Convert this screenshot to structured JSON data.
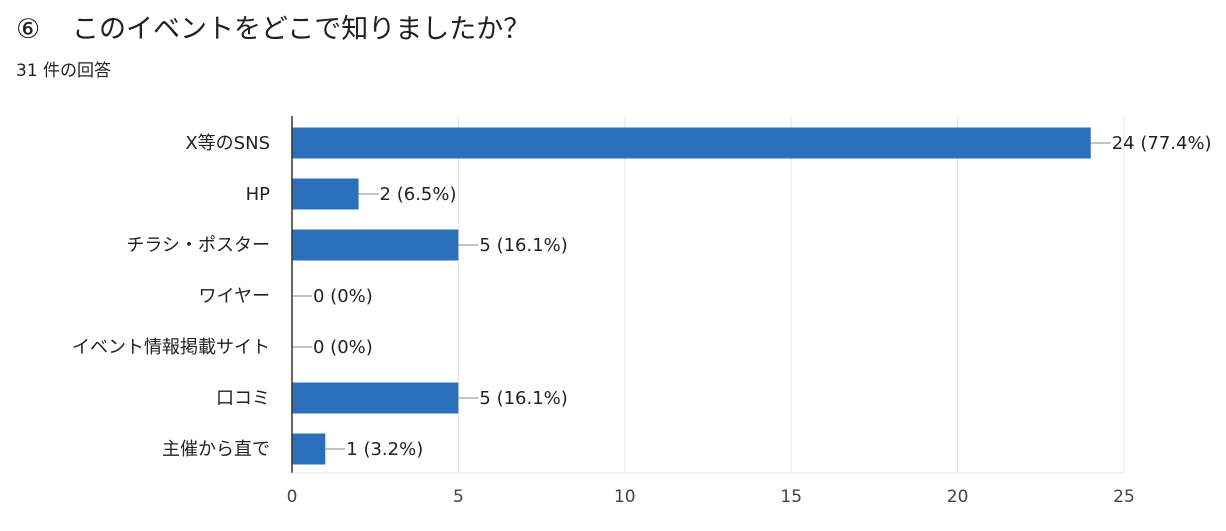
{
  "question": {
    "number": "⑥",
    "title": "このイベントをどこで知りましたか？",
    "response_count": "31 件の回答"
  },
  "colors": {
    "bar": "#2c6fba",
    "grid": "#e6e6e6",
    "axis": "#333333",
    "leader": "#888888"
  },
  "chart_data": {
    "type": "bar",
    "orientation": "horizontal",
    "categories": [
      "X等のSNS",
      "HP",
      "チラシ・ポスター",
      "ワイヤー",
      "イベント情報掲載サイト",
      "口コミ",
      "主催から直で"
    ],
    "values": [
      24,
      2,
      5,
      0,
      0,
      5,
      1
    ],
    "value_labels": [
      "24 (77.4%)",
      "2 (6.5%)",
      "5 (16.1%)",
      "0 (0%)",
      "0 (0%)",
      "5 (16.1%)",
      "1 (3.2%)"
    ],
    "xlim": [
      0,
      25
    ],
    "xticks": [
      0,
      5,
      10,
      15,
      20,
      25
    ],
    "title": "",
    "xlabel": "",
    "ylabel": "",
    "grid": true,
    "legend": "none"
  }
}
